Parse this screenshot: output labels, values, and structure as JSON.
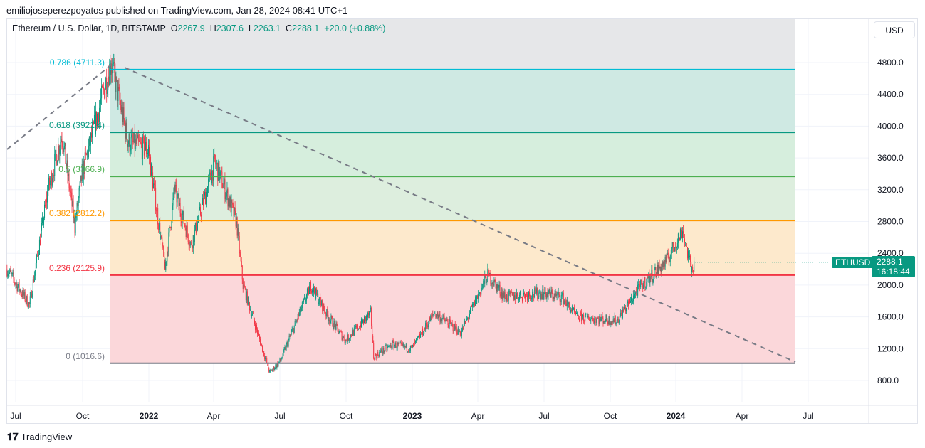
{
  "publisher": "emiliojoseperezpoyatos published on TradingView.com, Jan 28, 2024 08:41 UTC+1",
  "legend": {
    "symbol": "Ethereum / U.S. Dollar, 1D, BITSTAMP",
    "o_label": "O",
    "o": "2267.9",
    "h_label": "H",
    "h": "2307.6",
    "l_label": "L",
    "l": "2263.1",
    "c_label": "C",
    "c": "2288.1",
    "change": "+20.0 (+0.88%)"
  },
  "currency_button": "USD",
  "price_tag": {
    "symbol": "ETHUSD",
    "price": "2288.1",
    "countdown": "16:18:44"
  },
  "brand": "TradingView",
  "colors": {
    "up": "#089981",
    "down": "#f23645"
  },
  "chart_data": {
    "type": "candlestick",
    "y_ticks": [
      "4800.0",
      "4400.0",
      "4000.0",
      "3600.0",
      "3200.0",
      "2800.0",
      "2400.0",
      "2000.0",
      "1600.0",
      "1200.0",
      "800.0"
    ],
    "x_ticks": [
      "Jul",
      "Oct",
      "2022",
      "Apr",
      "Jul",
      "Oct",
      "2023",
      "Apr",
      "Jul",
      "Oct",
      "2024",
      "Apr",
      "Jul"
    ],
    "fib_levels": [
      {
        "label": "0.786 (4711.3)",
        "price": 4711.3,
        "color": "#00bcd4",
        "fill": "#cdf0f3"
      },
      {
        "label": "0.618 (3921.4)",
        "price": 3921.4,
        "color": "#089981",
        "fill": "#cfe9e3"
      },
      {
        "label": "0.5 (3366.9)",
        "price": 3366.9,
        "color": "#4caf50",
        "fill": "#d6eedd"
      },
      {
        "label": "0.382 (2812.2)",
        "price": 2812.2,
        "color": "#ff9800",
        "fill": "#ddeede"
      },
      {
        "label": "0.236 (2125.9)",
        "price": 2125.9,
        "color": "#f23645",
        "fill": "#fde9cc"
      },
      {
        "label": "0 (1016.6)",
        "price": 1016.6,
        "color": "#787b86",
        "fill": "#fbd7da"
      }
    ],
    "trend_points": [
      [
        "2021-06-19",
        2200
      ],
      [
        "2021-07-20",
        1750
      ],
      [
        "2021-08-15",
        3200
      ],
      [
        "2021-09-03",
        3900
      ],
      [
        "2021-09-21",
        2750
      ],
      [
        "2021-10-01",
        3400
      ],
      [
        "2021-11-10",
        4800
      ],
      [
        "2021-12-04",
        3800
      ],
      [
        "2022-01-01",
        3700
      ],
      [
        "2022-01-24",
        2200
      ],
      [
        "2022-02-06",
        3200
      ],
      [
        "2022-03-01",
        2500
      ],
      [
        "2022-04-03",
        3550
      ],
      [
        "2022-05-03",
        2800
      ],
      [
        "2022-05-12",
        2000
      ],
      [
        "2022-06-18",
        900
      ],
      [
        "2022-07-03",
        1050
      ],
      [
        "2022-08-14",
        2000
      ],
      [
        "2022-09-07",
        1600
      ],
      [
        "2022-10-01",
        1300
      ],
      [
        "2022-11-05",
        1650
      ],
      [
        "2022-11-09",
        1100
      ],
      [
        "2022-12-05",
        1250
      ],
      [
        "2023-01-01",
        1200
      ],
      [
        "2023-02-01",
        1650
      ],
      [
        "2023-03-10",
        1400
      ],
      [
        "2023-04-16",
        2130
      ],
      [
        "2023-05-10",
        1850
      ],
      [
        "2023-07-01",
        1900
      ],
      [
        "2023-07-28",
        1850
      ],
      [
        "2023-08-17",
        1600
      ],
      [
        "2023-10-12",
        1550
      ],
      [
        "2023-11-15",
        2000
      ],
      [
        "2023-12-20",
        2300
      ],
      [
        "2024-01-11",
        2700
      ],
      [
        "2024-01-23",
        2200
      ],
      [
        "2024-01-28",
        2288.1
      ]
    ]
  }
}
